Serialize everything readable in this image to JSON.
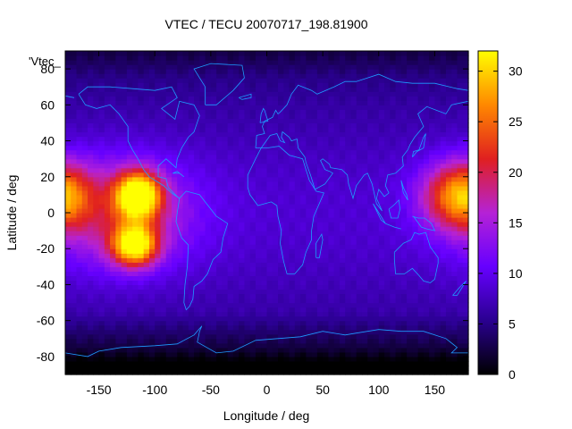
{
  "chart_data": {
    "type": "heatmap",
    "title": "VTEC / TECU 20070717_198.81900",
    "xlabel": "Longitude / deg",
    "ylabel": "Latitude / deg",
    "legend_key": "'Vtec_",
    "xlim": [
      -180,
      180
    ],
    "ylim": [
      -90,
      90
    ],
    "x_ticks": [
      -150,
      -100,
      -50,
      0,
      50,
      100,
      150
    ],
    "y_ticks": [
      -80,
      -60,
      -40,
      -20,
      0,
      20,
      40,
      60,
      80
    ],
    "colorbar": {
      "range": [
        0,
        32
      ],
      "ticks": [
        0,
        5,
        10,
        15,
        20,
        25,
        30
      ],
      "palette": [
        "#000000",
        "#2a0090",
        "#6600ff",
        "#b522d6",
        "#e02020",
        "#ff8800",
        "#ffff00"
      ]
    },
    "features": [
      {
        "lon": -115,
        "lat": 10,
        "vtec": 31,
        "spread_lon": 14,
        "spread_lat": 9
      },
      {
        "lon": -118,
        "lat": -18,
        "vtec": 29,
        "spread_lon": 14,
        "spread_lat": 8
      },
      {
        "lon": -130,
        "lat": 0,
        "vtec": 17,
        "spread_lon": 45,
        "spread_lat": 22
      },
      {
        "lon": 165,
        "lat": 10,
        "vtec": 18,
        "spread_lon": 22,
        "spread_lat": 13
      },
      {
        "lon": -180,
        "lat": 10,
        "vtec": 15,
        "spread_lon": 18,
        "spread_lat": 13
      }
    ],
    "grid": false,
    "coastlines": true
  }
}
